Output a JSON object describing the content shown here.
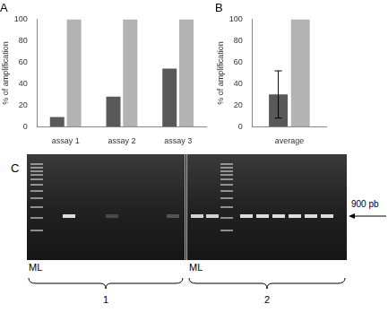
{
  "chart_data": [
    {
      "type": "bar",
      "title": "A",
      "y_label": "% of amplification",
      "categories": [
        "assay 1",
        "assay 2",
        "assay 3"
      ],
      "series": [
        {
          "color": "#595959",
          "values": [
            9,
            28,
            54
          ]
        },
        {
          "color": "#b3b3b3",
          "values": [
            100,
            100,
            100
          ]
        }
      ],
      "ylim": [
        0,
        100
      ],
      "yticks": [
        0,
        20,
        40,
        60,
        80,
        100
      ],
      "grid": false
    },
    {
      "type": "bar",
      "title": "B",
      "y_label": "% of amplification",
      "categories": [
        "average"
      ],
      "series": [
        {
          "color": "#595959",
          "values": [
            30
          ],
          "errors": [
            22
          ]
        },
        {
          "color": "#b3b3b3",
          "values": [
            100
          ]
        }
      ],
      "ylim": [
        0,
        100
      ],
      "yticks": [
        0,
        20,
        40,
        60,
        80,
        100
      ],
      "grid": false
    }
  ],
  "gel": {
    "title": "C",
    "band_label": "900 pb",
    "gels": [
      {
        "ladder": "ML",
        "group": "1"
      },
      {
        "ladder": "ML",
        "group": "2"
      }
    ]
  }
}
